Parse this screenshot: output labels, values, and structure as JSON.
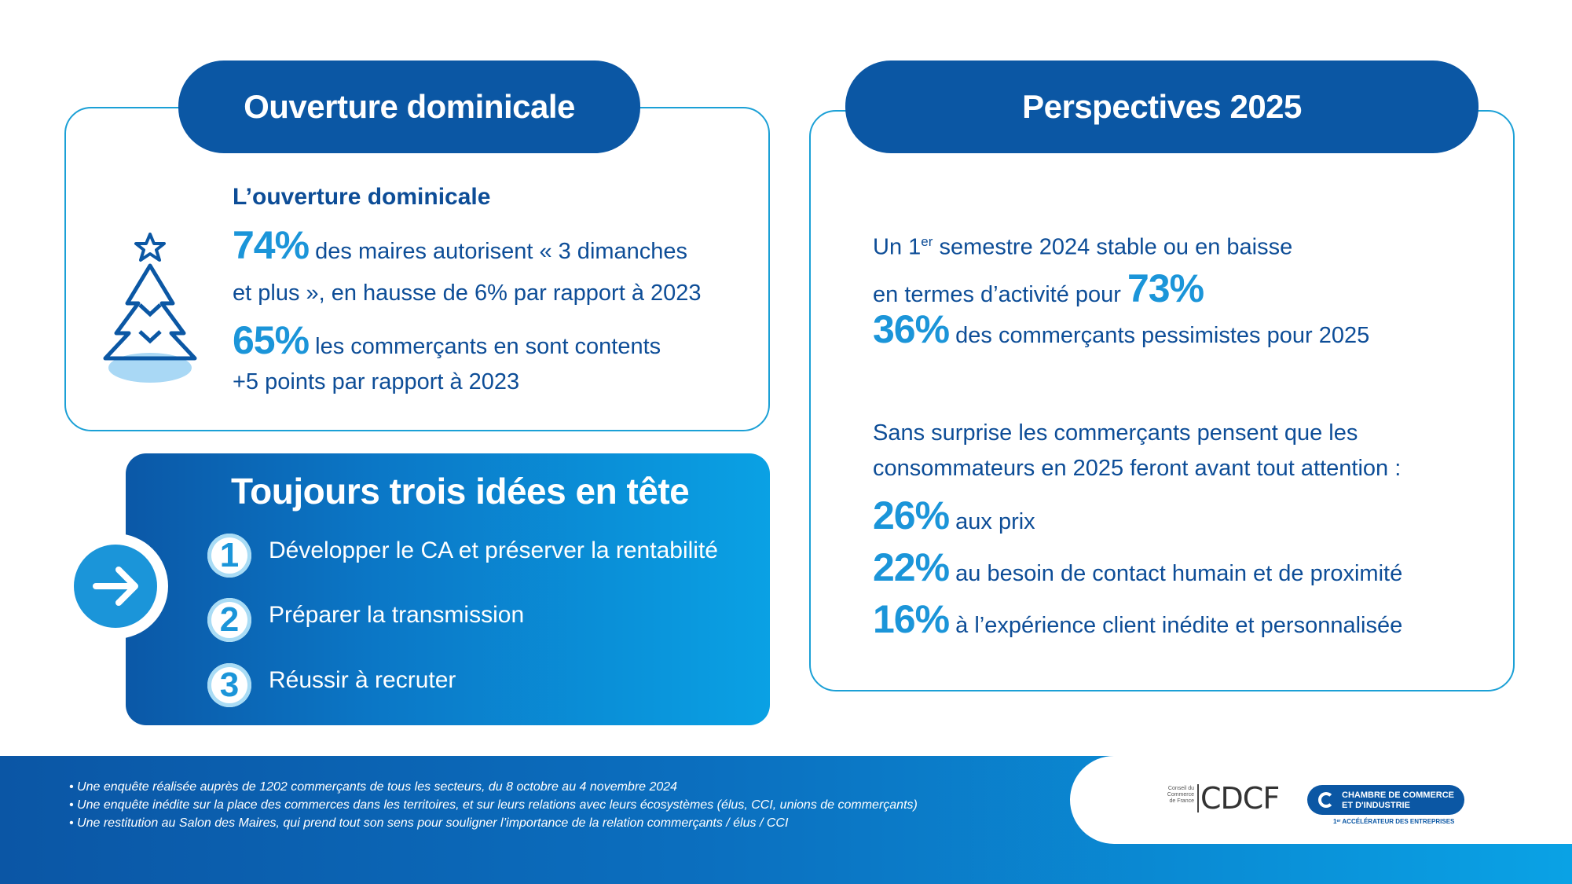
{
  "left_card": {
    "title": "Ouverture dominicale",
    "subtitle": "L’ouverture dominicale",
    "stat1_pct": "74%",
    "stat1_text_a": "des maires autorisent  « 3 dimanches",
    "stat1_text_b": "et plus », en hausse de 6% par rapport à 2023",
    "stat2_pct": "65%",
    "stat2_text_a": "les commerçants en sont contents",
    "stat2_text_b": "+5 points par rapport à 2023",
    "icon": "christmas-tree-icon"
  },
  "ideas_panel": {
    "title": "Toujours trois idées en tête",
    "arrow_icon": "arrow-right-icon",
    "items": [
      {
        "num": "1",
        "label": "Développer le CA et préserver la rentabilité"
      },
      {
        "num": "2",
        "label": "Préparer la transmission"
      },
      {
        "num": "3",
        "label": "Réussir à recruter"
      }
    ]
  },
  "right_card": {
    "title": "Perspectives 2025",
    "line1_a": "Un 1",
    "line1_sup": "er",
    "line1_b": " semestre 2024 stable ou en baisse",
    "line2": "en termes d’activité pour",
    "line2_pct": "73%",
    "line3_pct": "36%",
    "line3_text": "des commerçants pessimistes pour 2025",
    "para_a": "Sans surprise les commerçants pensent que les",
    "para_b": "consommateurs en 2025 feront avant tout attention :",
    "stats": [
      {
        "pct": "26%",
        "text": "aux prix"
      },
      {
        "pct": "22%",
        "text": "au besoin de contact humain et de proximité"
      },
      {
        "pct": "16%",
        "text": "à  l’expérience client inédite et personnalisée"
      }
    ]
  },
  "footer": {
    "notes": [
      "• Une enquête réalisée auprès de 1202 commerçants de tous les secteurs, du 8 octobre au 4 novembre 2024",
      "• Une enquête inédite sur la place des commerces dans les territoires, et sur leurs relations avec leurs écosystèmes (élus, CCI, unions de commerçants)",
      "• Une restitution au Salon des Maires, qui prend tout son sens pour souligner l’importance de la relation commerçants / élus / CCI"
    ],
    "cdcf_small_1": "Conseil du",
    "cdcf_small_2": "Commerce",
    "cdcf_small_3": "de France",
    "cdcf_logo": "CDCF",
    "cci_line1": "CHAMBRE DE COMMERCE",
    "cci_line2": "ET D'INDUSTRIE",
    "cci_tagline": "1ᵉʳ ACCÉLÉRATEUR DES ENTREPRISES"
  },
  "colors": {
    "navy": "#0b57a4",
    "accent": "#1b95d9",
    "text": "#0d4d97",
    "frame": "#1ba0d6"
  }
}
